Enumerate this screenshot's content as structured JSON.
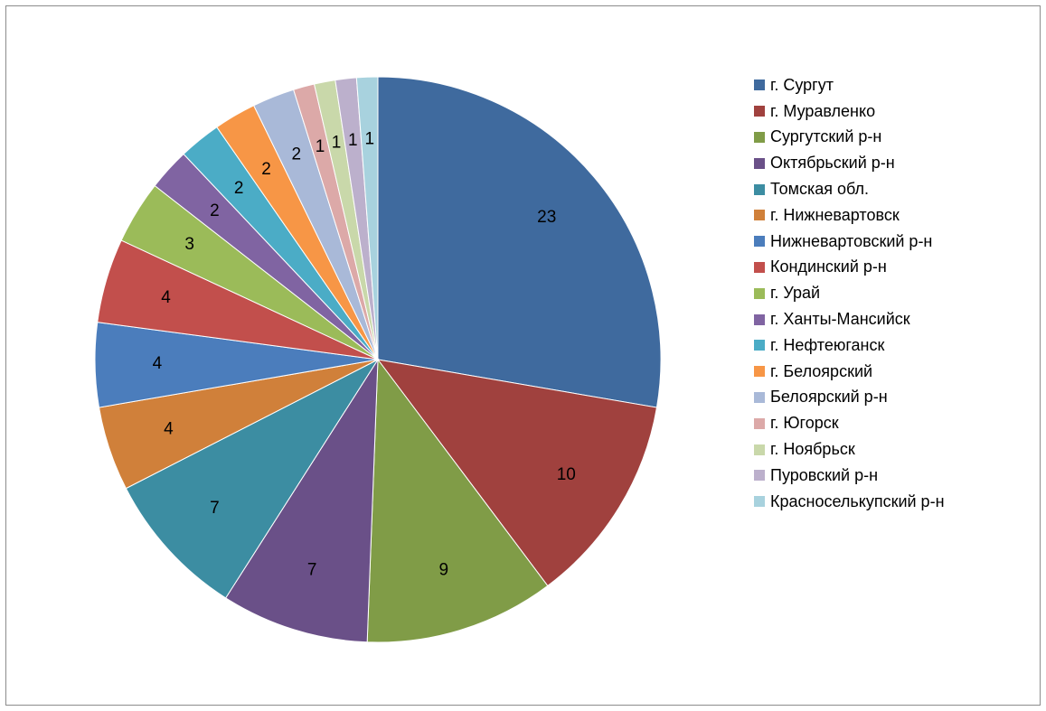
{
  "chart_data": {
    "type": "pie",
    "start_angle_deg": 0,
    "direction": "clockwise",
    "legend_position": "right",
    "slices": [
      {
        "label": "г. Сургут",
        "value": 23,
        "color": "#3f6a9e"
      },
      {
        "label": "г. Муравленко",
        "value": 10,
        "color": "#a0413e"
      },
      {
        "label": "Сургутский р-н",
        "value": 9,
        "color": "#809c47"
      },
      {
        "label": "Октябрьский р-н",
        "value": 7,
        "color": "#6a5088"
      },
      {
        "label": "Томская обл.",
        "value": 7,
        "color": "#3c8da2"
      },
      {
        "label": "г. Нижневартовск",
        "value": 4,
        "color": "#d0803a"
      },
      {
        "label": "Нижневартовский р-н",
        "value": 4,
        "color": "#4b7dbc"
      },
      {
        "label": "Кондинский р-н",
        "value": 4,
        "color": "#c24f4c"
      },
      {
        "label": "г. Урай",
        "value": 3,
        "color": "#9bbb59"
      },
      {
        "label": "г. Ханты-Мансийск",
        "value": 2,
        "color": "#8064a2"
      },
      {
        "label": "г. Нефтеюганск",
        "value": 2,
        "color": "#4bacc6"
      },
      {
        "label": "г. Белоярский",
        "value": 2,
        "color": "#f79646"
      },
      {
        "label": "Белоярский р-н",
        "value": 2,
        "color": "#a9b9d8"
      },
      {
        "label": "г. Югорск",
        "value": 1,
        "color": "#dca9a8"
      },
      {
        "label": "г. Ноябрьск",
        "value": 1,
        "color": "#c9d8aa"
      },
      {
        "label": "Пуровский р-н",
        "value": 1,
        "color": "#bcb0cc"
      },
      {
        "label": "Красноселькупский р-н",
        "value": 1,
        "color": "#a8d2de"
      }
    ]
  }
}
